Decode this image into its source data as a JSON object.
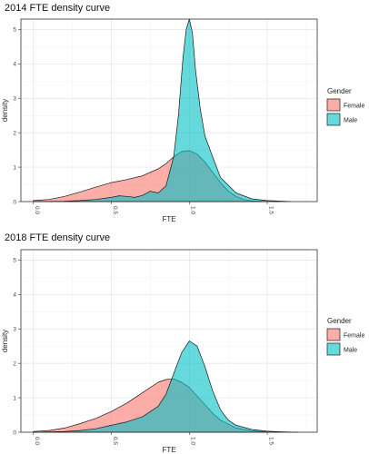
{
  "chart_data": [
    {
      "type": "area",
      "title": "2014 FTE density curve",
      "xlabel": "FTE",
      "ylabel": "density",
      "xlim": [
        -0.08,
        1.82
      ],
      "ylim": [
        0,
        5.3
      ],
      "xticks": [
        "0.0",
        "0.5",
        "1.0",
        "1.5"
      ],
      "yticks": [
        "0",
        "1",
        "2",
        "3",
        "4",
        "5"
      ],
      "grid": true,
      "legend": {
        "title": "Gender",
        "position": "right",
        "entries": [
          "Female",
          "Male"
        ]
      },
      "series": [
        {
          "name": "Female",
          "color": "#F8766D",
          "x": [
            0.0,
            0.1,
            0.2,
            0.3,
            0.4,
            0.5,
            0.6,
            0.7,
            0.8,
            0.85,
            0.9,
            0.95,
            1.0,
            1.05,
            1.1,
            1.15,
            1.2,
            1.25,
            1.3,
            1.35,
            1.4,
            1.5
          ],
          "y": [
            0.03,
            0.06,
            0.15,
            0.28,
            0.42,
            0.55,
            0.64,
            0.75,
            0.95,
            1.1,
            1.3,
            1.45,
            1.48,
            1.38,
            1.15,
            0.85,
            0.55,
            0.3,
            0.15,
            0.06,
            0.02,
            0.0
          ]
        },
        {
          "name": "Male",
          "color": "#00BFC4",
          "x": [
            0.0,
            0.2,
            0.3,
            0.4,
            0.5,
            0.55,
            0.6,
            0.65,
            0.7,
            0.75,
            0.8,
            0.85,
            0.9,
            0.93,
            0.96,
            0.98,
            1.0,
            1.02,
            1.04,
            1.07,
            1.1,
            1.15,
            1.2,
            1.3,
            1.4,
            1.5,
            1.6,
            1.65
          ],
          "y": [
            0.0,
            0.01,
            0.03,
            0.06,
            0.12,
            0.17,
            0.15,
            0.12,
            0.18,
            0.3,
            0.25,
            0.45,
            1.3,
            2.5,
            4.2,
            5.0,
            5.3,
            4.9,
            3.8,
            2.7,
            1.9,
            1.3,
            0.7,
            0.25,
            0.08,
            0.03,
            0.01,
            0.0
          ]
        }
      ]
    },
    {
      "type": "area",
      "title": "2018 FTE density curve",
      "xlabel": "FTE",
      "ylabel": "density",
      "xlim": [
        -0.08,
        1.82
      ],
      "ylim": [
        0,
        5.3
      ],
      "xticks": [
        "0.0",
        "0.5",
        "1.0",
        "1.5"
      ],
      "yticks": [
        "0",
        "1",
        "2",
        "3",
        "4",
        "5"
      ],
      "grid": true,
      "legend": {
        "title": "Gender",
        "position": "right",
        "entries": [
          "Female",
          "Male"
        ]
      },
      "series": [
        {
          "name": "Female",
          "color": "#F8766D",
          "x": [
            0.0,
            0.1,
            0.2,
            0.3,
            0.4,
            0.5,
            0.6,
            0.7,
            0.8,
            0.85,
            0.9,
            0.95,
            1.0,
            1.05,
            1.1,
            1.15,
            1.2,
            1.3,
            1.4,
            1.5,
            1.6
          ],
          "y": [
            0.02,
            0.05,
            0.12,
            0.25,
            0.4,
            0.6,
            0.85,
            1.15,
            1.45,
            1.53,
            1.55,
            1.45,
            1.3,
            1.05,
            0.8,
            0.55,
            0.35,
            0.12,
            0.04,
            0.01,
            0.0
          ]
        },
        {
          "name": "Male",
          "color": "#00BFC4",
          "x": [
            0.0,
            0.2,
            0.3,
            0.4,
            0.5,
            0.6,
            0.7,
            0.8,
            0.85,
            0.9,
            0.95,
            1.0,
            1.05,
            1.1,
            1.15,
            1.2,
            1.25,
            1.3,
            1.4,
            1.5,
            1.6,
            1.7
          ],
          "y": [
            0.0,
            0.02,
            0.05,
            0.1,
            0.2,
            0.3,
            0.45,
            0.75,
            1.1,
            1.7,
            2.3,
            2.65,
            2.5,
            1.9,
            1.2,
            0.65,
            0.35,
            0.2,
            0.08,
            0.03,
            0.01,
            0.0
          ]
        }
      ]
    }
  ]
}
